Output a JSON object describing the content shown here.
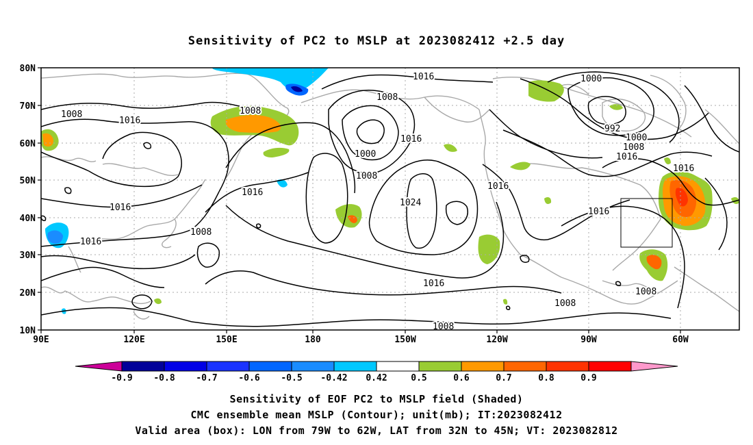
{
  "title": "Sensitivity of PC2 to MSLP at 2023082412 +2.5 day",
  "map": {
    "lat_labels": [
      "80N",
      "70N",
      "60N",
      "50N",
      "40N",
      "30N",
      "20N",
      "10N"
    ],
    "lon_labels": [
      "90E",
      "120E",
      "150E",
      "180",
      "150W",
      "120W",
      "90W",
      "60W"
    ],
    "contour_labels": [
      {
        "text": "1016"
      },
      {
        "text": "1008"
      },
      {
        "text": "1008"
      },
      {
        "text": "1016"
      },
      {
        "text": "1008"
      },
      {
        "text": "1000"
      },
      {
        "text": "1008"
      },
      {
        "text": "1016"
      },
      {
        "text": "1016"
      },
      {
        "text": "1016"
      },
      {
        "text": "1016"
      },
      {
        "text": "1008"
      },
      {
        "text": "1008"
      },
      {
        "text": "1024"
      },
      {
        "text": "1016"
      },
      {
        "text": "1016"
      },
      {
        "text": "1000"
      },
      {
        "text": "992"
      },
      {
        "text": "1000"
      },
      {
        "text": "1008"
      },
      {
        "text": "1016"
      },
      {
        "text": "1016"
      },
      {
        "text": "1016"
      },
      {
        "text": "1008"
      },
      {
        "text": "1008"
      }
    ]
  },
  "colorbar": {
    "labels": [
      "-0.9",
      "-0.8",
      "-0.7",
      "-0.6",
      "-0.5",
      "-0.42",
      "0.42",
      "0.5",
      "0.6",
      "0.7",
      "0.8",
      "0.9"
    ],
    "colors": [
      "#000099",
      "#0000e6",
      "#1a33ff",
      "#0066ff",
      "#1a8cff",
      "#00c8ff",
      "#ffffff",
      "#99cc33",
      "#ff9900",
      "#ff6600",
      "#ff3300",
      "#ff0000"
    ],
    "low_extend_color": "#cc0099",
    "high_extend_color": "#ff99cc"
  },
  "captions": {
    "line1": "Sensitivity of EOF PC2 to MSLP field (Shaded)",
    "line2": "CMC ensemble mean MSLP (Contour); unit(mb); IT:2023082412",
    "line3": "Valid area (box): LON from 79W to 62W, LAT from 32N to 45N; VT: 2023082812"
  }
}
